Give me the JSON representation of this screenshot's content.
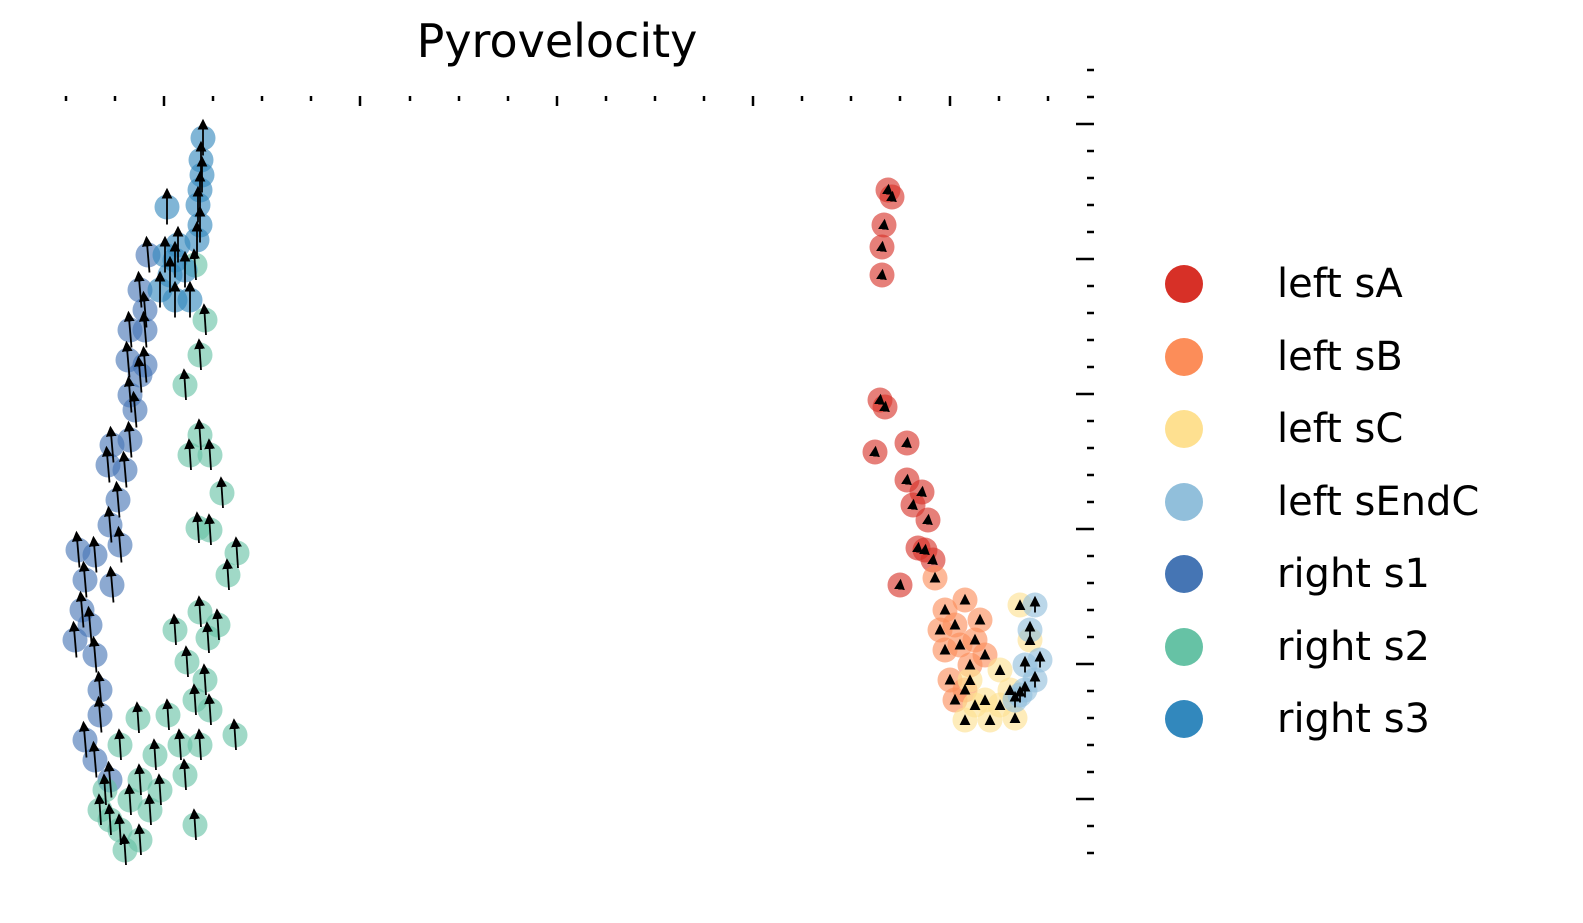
{
  "chart_data": {
    "type": "scatter",
    "title": "Pyrovelocity",
    "xlabel": "",
    "ylabel": "",
    "xlim": [
      0,
      103
    ],
    "ylim": [
      0,
      80
    ],
    "grid": false,
    "legend_placement": "right",
    "xticks_minor": [
      0.6,
      5.5,
      10.4,
      15.3,
      20.2,
      25.1,
      30.0,
      35.0,
      39.9,
      44.8,
      49.7,
      54.6,
      59.5,
      64.4,
      69.3,
      74.2,
      79.1,
      84.0,
      89.0,
      93.9,
      98.8
    ],
    "xticks_major": [
      10.4,
      30.0,
      49.7,
      69.3,
      89.0
    ],
    "yticks_major": [
      75.6,
      62.1,
      48.6,
      35.1,
      21.6,
      8.1
    ],
    "ytick_minor_step": 2.7,
    "series": [
      {
        "name": "left sA",
        "color": "#d73027",
        "velocity": [
          0.1,
          0.9
        ],
        "points": [
          [
            82.8,
            69
          ],
          [
            83.2,
            68.3
          ],
          [
            82.4,
            65.5
          ],
          [
            82.2,
            63.3
          ],
          [
            82.2,
            60.5
          ],
          [
            82,
            48
          ],
          [
            82.5,
            47.3
          ],
          [
            81.5,
            42.8
          ],
          [
            84.7,
            43.7
          ],
          [
            84.7,
            40
          ],
          [
            86.2,
            38.8
          ],
          [
            85.3,
            37.5
          ],
          [
            86.8,
            36
          ],
          [
            86.5,
            33
          ],
          [
            85.8,
            33.2
          ],
          [
            84,
            29.5
          ],
          [
            87.3,
            32
          ]
        ]
      },
      {
        "name": "left sB",
        "color": "#fc8d59",
        "velocity": [
          0,
          0.9
        ],
        "points": [
          [
            87.5,
            30.2
          ],
          [
            88.5,
            27
          ],
          [
            90.5,
            28
          ],
          [
            88,
            25
          ],
          [
            89.5,
            25.5
          ],
          [
            92,
            26
          ],
          [
            88.5,
            23
          ],
          [
            90,
            23.5
          ],
          [
            91.5,
            24
          ],
          [
            89,
            20
          ],
          [
            91,
            21.5
          ],
          [
            92.5,
            22.5
          ],
          [
            89.5,
            18
          ],
          [
            90.5,
            19
          ]
        ]
      },
      {
        "name": "left sC",
        "color": "#fee090",
        "velocity": [
          0,
          0.8
        ],
        "points": [
          [
            96,
            27.5
          ],
          [
            91,
            20
          ],
          [
            94,
            21
          ],
          [
            92.5,
            18
          ],
          [
            95,
            19
          ],
          [
            90.5,
            16
          ],
          [
            93,
            16
          ],
          [
            95.5,
            16.2
          ],
          [
            97,
            24
          ],
          [
            94,
            17.5
          ],
          [
            91.5,
            17.5
          ]
        ]
      },
      {
        "name": "left sEndC",
        "color": "#91bfdb",
        "velocity": [
          0,
          1.5
        ],
        "points": [
          [
            97.5,
            27.5
          ],
          [
            97,
            25
          ],
          [
            96.5,
            21.5
          ],
          [
            97.5,
            20
          ],
          [
            96,
            18.5
          ],
          [
            98,
            22
          ],
          [
            95.5,
            18
          ],
          [
            96.5,
            19
          ]
        ]
      },
      {
        "name": "right s1",
        "color": "#4575b4",
        "velocity": [
          -0.3,
          3.5
        ],
        "points": [
          [
            8.8,
            62.5
          ],
          [
            8,
            59
          ],
          [
            8.5,
            57
          ],
          [
            7,
            55
          ],
          [
            6.8,
            52
          ],
          [
            8,
            50.5
          ],
          [
            7.5,
            47
          ],
          [
            7,
            44
          ],
          [
            5.2,
            43.5
          ],
          [
            4.8,
            41.5
          ],
          [
            6.5,
            41
          ],
          [
            5.8,
            38
          ],
          [
            5,
            35.5
          ],
          [
            1.8,
            33
          ],
          [
            3.5,
            32.5
          ],
          [
            6,
            33.5
          ],
          [
            2.5,
            30
          ],
          [
            5.2,
            29.5
          ],
          [
            2.2,
            27
          ],
          [
            3,
            25.5
          ],
          [
            1.5,
            24
          ],
          [
            3.5,
            22.5
          ],
          [
            4,
            19
          ],
          [
            4,
            16.5
          ],
          [
            2.5,
            14
          ],
          [
            3.5,
            12
          ],
          [
            5,
            10
          ],
          [
            8.5,
            51.5
          ],
          [
            7,
            48.5
          ],
          [
            8.5,
            55
          ]
        ]
      },
      {
        "name": "right s2",
        "color": "#66c2a5",
        "velocity": [
          -0.2,
          3
        ],
        "points": [
          [
            13.5,
            61.5
          ],
          [
            14.5,
            56
          ],
          [
            14,
            52.5
          ],
          [
            12.5,
            49.5
          ],
          [
            14,
            44.5
          ],
          [
            15,
            42.5
          ],
          [
            13,
            42.5
          ],
          [
            16.2,
            38.7
          ],
          [
            13.8,
            35.2
          ],
          [
            15,
            35
          ],
          [
            17.7,
            32.7
          ],
          [
            16.8,
            30.5
          ],
          [
            14,
            26.8
          ],
          [
            11.5,
            25
          ],
          [
            15.8,
            25.5
          ],
          [
            14.8,
            24.2
          ],
          [
            12.7,
            21.8
          ],
          [
            14.5,
            20
          ],
          [
            13.5,
            18
          ],
          [
            15,
            17
          ],
          [
            10.8,
            16.5
          ],
          [
            7.8,
            16.2
          ],
          [
            17.5,
            14.5
          ],
          [
            14,
            13.5
          ],
          [
            12,
            13.5
          ],
          [
            9.5,
            12.5
          ],
          [
            6,
            13.5
          ],
          [
            4.5,
            9
          ],
          [
            7,
            8
          ],
          [
            9,
            7
          ],
          [
            6,
            5
          ],
          [
            4,
            7
          ],
          [
            6.5,
            3
          ],
          [
            8,
            4
          ],
          [
            10,
            9
          ],
          [
            12.5,
            10.5
          ],
          [
            13.5,
            5.5
          ],
          [
            5,
            6
          ],
          [
            8,
            10
          ]
        ]
      },
      {
        "name": "right s3",
        "color": "#3288bd",
        "velocity": [
          0,
          3.5
        ],
        "points": [
          [
            14.3,
            74.2
          ],
          [
            14.1,
            72
          ],
          [
            14.2,
            70.5
          ],
          [
            14,
            69
          ],
          [
            13.8,
            67.5
          ],
          [
            14,
            65.5
          ],
          [
            13.7,
            64
          ],
          [
            11.8,
            63.5
          ],
          [
            11.5,
            62
          ],
          [
            11,
            60.5
          ],
          [
            12.5,
            61
          ],
          [
            10,
            59
          ],
          [
            11.5,
            58
          ],
          [
            10.5,
            62.5
          ],
          [
            13,
            58
          ],
          [
            10.7,
            67.3
          ]
        ]
      }
    ]
  }
}
